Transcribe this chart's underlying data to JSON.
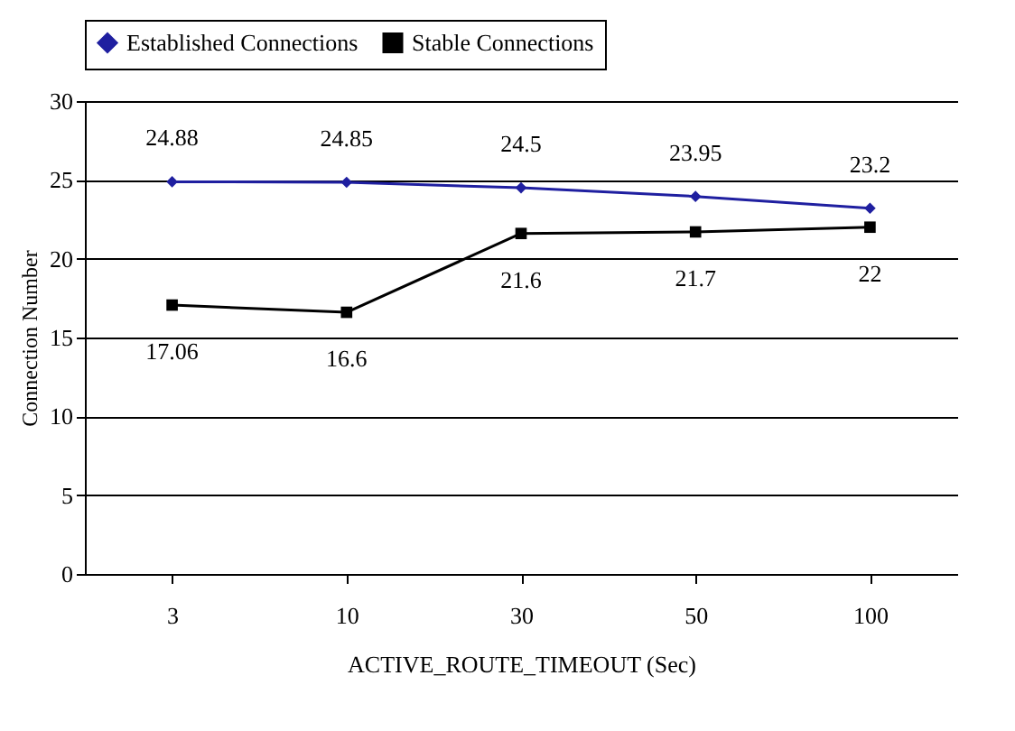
{
  "chart_data": {
    "type": "line",
    "xlabel": "ACTIVE_ROUTE_TIMEOUT (Sec)",
    "ylabel": "Connection Number",
    "categories": [
      "3",
      "10",
      "30",
      "50",
      "100"
    ],
    "series": [
      {
        "name": "Established Connections",
        "color": "#1f1fa0",
        "marker": "diamond",
        "values": [
          24.88,
          24.85,
          24.5,
          23.95,
          23.2
        ]
      },
      {
        "name": "Stable Connections",
        "color": "#000000",
        "marker": "square",
        "values": [
          17.06,
          16.6,
          21.6,
          21.7,
          22
        ]
      }
    ],
    "ylim": [
      0,
      30
    ],
    "yticks": [
      0,
      5,
      10,
      15,
      20,
      25,
      30
    ],
    "grid": "y",
    "legend": "top",
    "data_labels": true,
    "line_style": "solid"
  }
}
